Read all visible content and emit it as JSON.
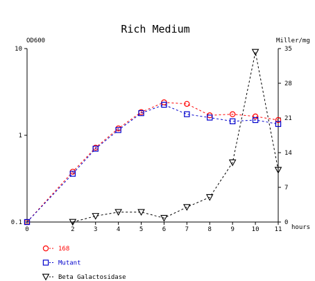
{
  "chart_data": {
    "type": "line",
    "title": "Rich Medium",
    "y_left_label": "OD600",
    "y_right_label": "Miller/mg",
    "x_unit_label": "hours",
    "x_ticks": [
      0,
      2,
      3,
      4,
      5,
      6,
      7,
      8,
      9,
      10,
      11
    ],
    "x_range": [
      0,
      11
    ],
    "y_left_scale": "log",
    "y_left_range": [
      0.1,
      10
    ],
    "y_left_ticks": [
      "0.1",
      "1",
      "10"
    ],
    "y_right_range": [
      0,
      35
    ],
    "y_right_ticks": [
      0,
      7,
      14,
      21,
      28,
      35
    ],
    "grid": false,
    "legend_position": "bottom-left",
    "series": [
      {
        "name": "168",
        "axis": "left",
        "marker": "circle",
        "color": "#ff0000",
        "line_style": "dashed",
        "x": [
          0,
          2,
          3,
          4,
          5,
          6,
          7,
          8,
          9,
          10,
          11
        ],
        "y": [
          0.1,
          0.38,
          0.72,
          1.2,
          1.85,
          2.4,
          2.3,
          1.7,
          1.75,
          1.65,
          1.5
        ]
      },
      {
        "name": "Mutant",
        "axis": "left",
        "marker": "square",
        "color": "#0000cc",
        "line_style": "dashed",
        "x": [
          0,
          2,
          3,
          4,
          5,
          6,
          7,
          8,
          9,
          10,
          11
        ],
        "y": [
          0.1,
          0.36,
          0.7,
          1.15,
          1.8,
          2.25,
          1.75,
          1.6,
          1.45,
          1.5,
          1.35
        ]
      },
      {
        "name": "Beta Galactosidase",
        "axis": "right",
        "marker": "triangle-down",
        "color": "#000000",
        "line_style": "dashed",
        "x": [
          2,
          3,
          4,
          5,
          6,
          7,
          8,
          9,
          10,
          11
        ],
        "y": [
          0,
          1.2,
          2,
          2,
          0.8,
          3,
          5,
          12,
          34.3,
          10.5
        ]
      }
    ]
  }
}
